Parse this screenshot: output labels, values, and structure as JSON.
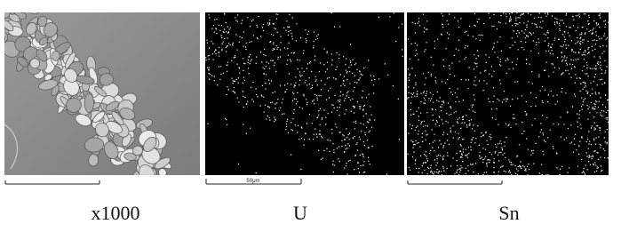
{
  "panels": [
    {
      "label": "x1000"
    },
    {
      "label": "U",
      "scale_text": "50μm"
    },
    {
      "label": "Sn"
    }
  ]
}
